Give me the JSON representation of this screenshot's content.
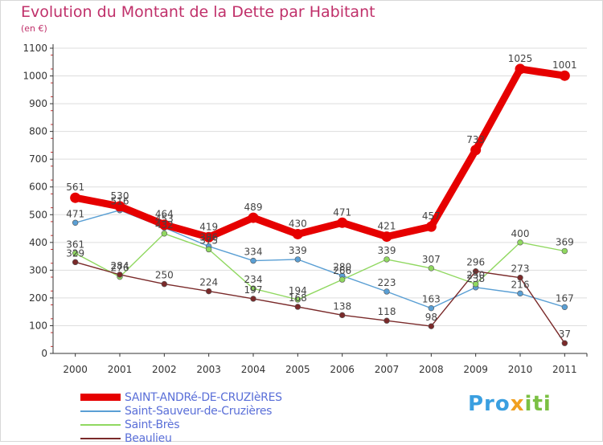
{
  "header": {
    "title": "Evolution du Montant de la Dette par Habitant",
    "subtitle": "(en €)"
  },
  "brand": {
    "p1": "Pro",
    "p2": "x",
    "p3": "iti"
  },
  "colors": {
    "title": "#c0306a",
    "axis": "#333333",
    "grid": "#dddddd"
  },
  "chart_data": {
    "type": "line",
    "title": "Evolution du Montant de la Dette par Habitant",
    "ylabel": "(en €)",
    "xlabel": "",
    "x": [
      "2000",
      "2001",
      "2002",
      "2003",
      "2004",
      "2005",
      "2006",
      "2007",
      "2008",
      "2009",
      "2010",
      "2011"
    ],
    "ylim": [
      0,
      1100
    ],
    "yticks": [
      0,
      100,
      200,
      300,
      400,
      500,
      600,
      700,
      800,
      900,
      1000,
      1100
    ],
    "grid": "horizontal",
    "legend": "bottom-left",
    "series": [
      {
        "name": "SAINT-ANDRé-DE-CRUZIèRES",
        "color": "#e60000",
        "width": 9,
        "values": [
          561,
          530,
          464,
          419,
          489,
          430,
          471,
          421,
          457,
          733,
          1025,
          1001
        ]
      },
      {
        "name": "Saint-Sauveur-de-Cruzières",
        "color": "#5a9fd4",
        "width": 1.4,
        "values": [
          471,
          516,
          453,
          386,
          334,
          339,
          280,
          223,
          163,
          238,
          216,
          167
        ]
      },
      {
        "name": "Saint-Brès",
        "color": "#90d860",
        "width": 1.4,
        "values": [
          361,
          276,
          432,
          375,
          234,
          194,
          266,
          339,
          307,
          250,
          400,
          369
        ]
      },
      {
        "name": "Beaulieu",
        "color": "#7a2a2a",
        "width": 1.4,
        "values": [
          329,
          284,
          250,
          224,
          197,
          168,
          138,
          118,
          98,
          296,
          273,
          37
        ]
      }
    ]
  }
}
